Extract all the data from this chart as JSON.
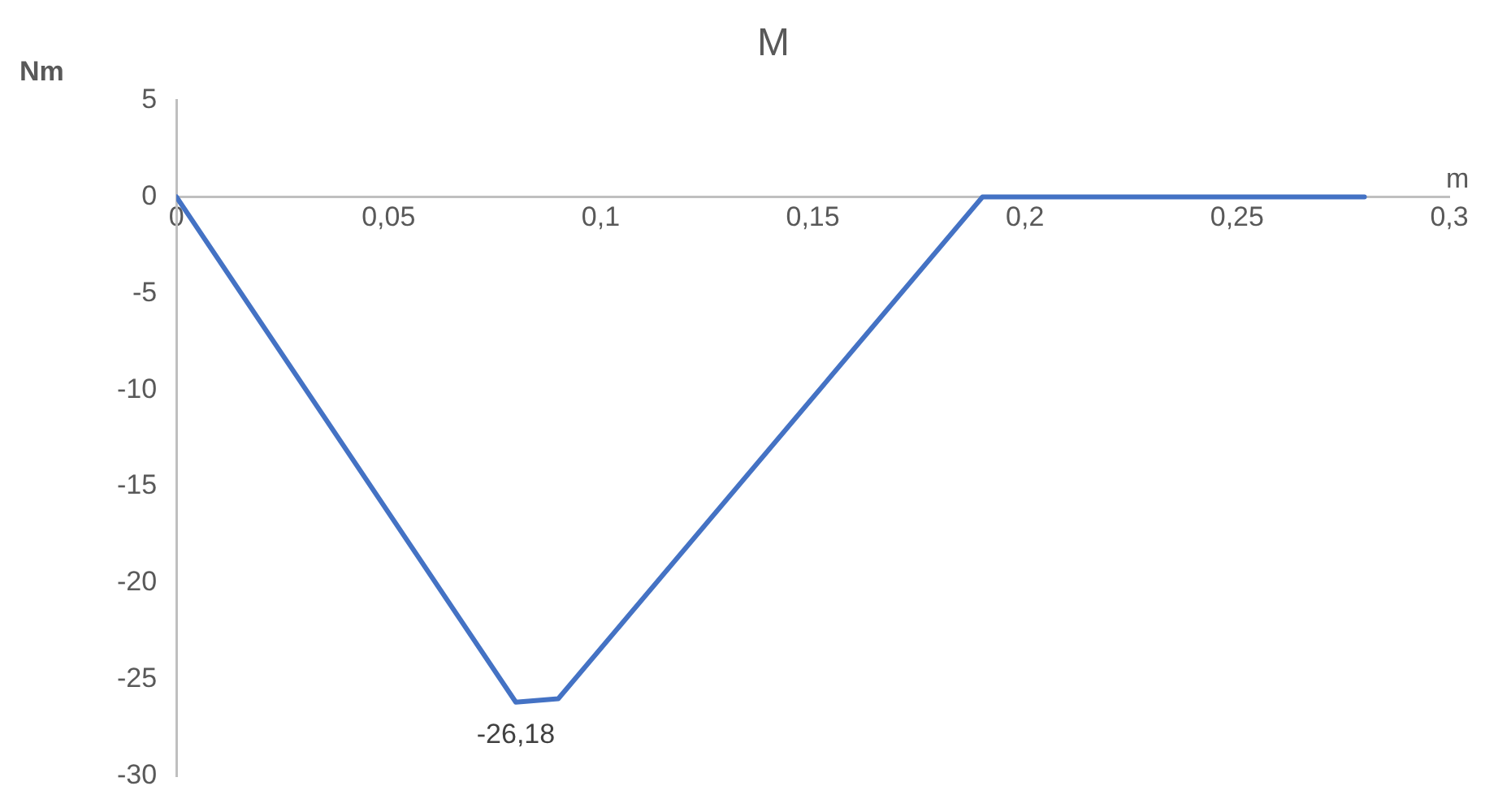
{
  "chart_data": {
    "type": "line",
    "title": "M",
    "xlabel": "m",
    "ylabel": "Nm",
    "x": [
      0,
      0.08,
      0.09,
      0.19,
      0.28
    ],
    "series": [
      {
        "color": "#4472c4",
        "values": [
          0,
          -26.18,
          -26,
          0,
          0
        ],
        "value_labels": [
          null,
          "-26,18",
          null,
          null,
          null
        ]
      }
    ],
    "xlim": [
      0,
      0.3
    ],
    "xticks": [
      0,
      {
        "value": 0.05,
        "label": "0,05"
      },
      {
        "value": 0.1,
        "label": "0,1"
      },
      {
        "value": 0.15,
        "label": "0,15"
      },
      {
        "value": 0.2,
        "label": "0,2"
      },
      {
        "value": 0.25,
        "label": "0,25"
      },
      {
        "value": 0.3,
        "label": "0,3"
      }
    ],
    "ylim": [
      -30,
      5
    ],
    "yticks": [
      5,
      0,
      -5,
      -10,
      -15,
      -20,
      -25,
      -30
    ],
    "grid": false,
    "legend": false,
    "marker": "none",
    "line_style": "solid"
  }
}
